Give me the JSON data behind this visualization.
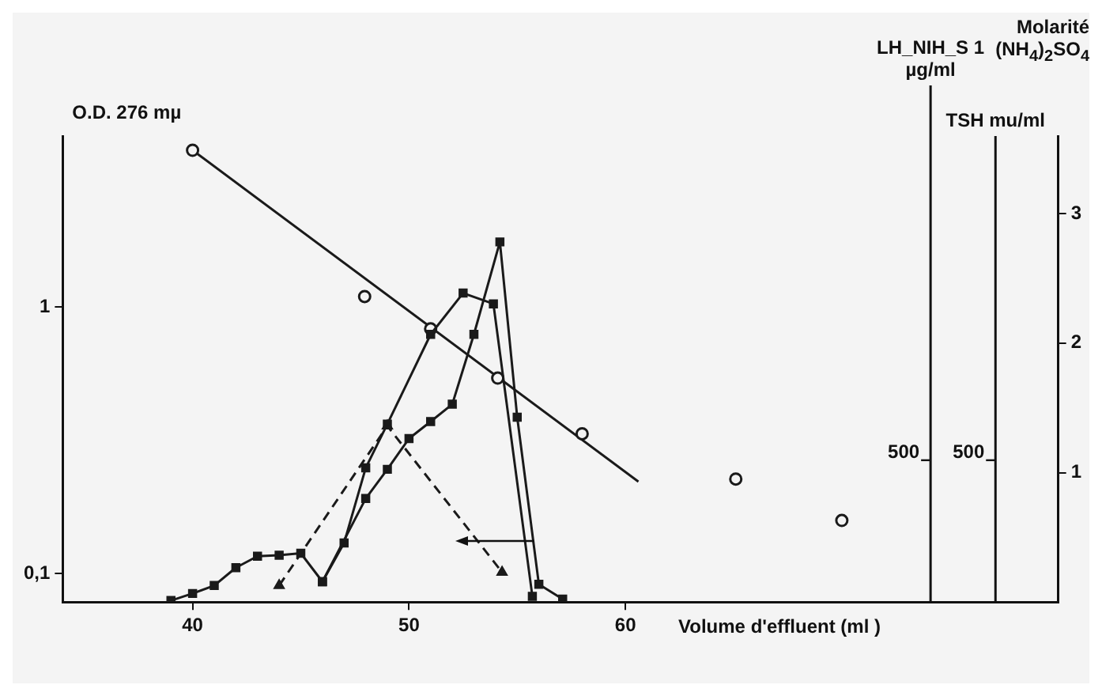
{
  "chart_data": {
    "type": "line",
    "ylabel": "O.D. 276 mµ",
    "xlabel": "Volume d'effluent (ml )",
    "y2label": "Molarité (NH$_{4}$)$_{2}$SO$_{4}$",
    "xlim": [
      34,
      80
    ],
    "xticks": [
      40,
      50,
      60
    ],
    "ylim": [
      0.078,
      4.4
    ],
    "yticks": [
      {
        "value": 0.1,
        "label": "0,1"
      },
      1
    ],
    "log": "y",
    "y2lim": [
      0,
      3.6
    ],
    "y2ticks": [
      1,
      2,
      3
    ],
    "ref_lines": [
      {
        "axis": "x",
        "value": 74.1,
        "label": "LH_NIH_S 1 µg/ml",
        "color": "#111111",
        "line_style": "solid"
      },
      {
        "axis": "x",
        "value": 77.1,
        "label": "TSH mu/ml",
        "color": "#111111",
        "line_style": "solid"
      }
    ],
    "annotations": [
      {
        "text": "500",
        "x": 74.1,
        "y": 0.285
      },
      {
        "text": "500",
        "x": 77.1,
        "y": 0.285
      }
    ],
    "grid": false,
    "legend": false,
    "series": [
      {
        "axis": "y",
        "color": "#1a1a1a",
        "marker": "square",
        "line_style": "solid",
        "x": [
          39,
          40,
          41,
          42,
          43,
          44,
          45,
          46,
          48,
          49,
          50,
          51,
          52,
          53,
          54.2,
          55,
          56,
          57.1
        ],
        "values": [
          0.079,
          0.084,
          0.09,
          0.105,
          0.116,
          0.117,
          0.119,
          0.093,
          0.191,
          0.246,
          0.321,
          0.372,
          0.432,
          0.791,
          1.76,
          0.386,
          0.091,
          0.08
        ]
      },
      {
        "axis": "y",
        "color": "#1a1a1a",
        "marker": "square",
        "line_style": "solid",
        "x": [
          46,
          47,
          48,
          49,
          51,
          52.5,
          53.9,
          55.7
        ],
        "values": [
          0.093,
          0.13,
          0.249,
          0.364,
          0.791,
          1.13,
          1.03,
          0.082
        ]
      },
      {
        "axis": "y",
        "color": "#1a1a1a",
        "marker": "triangle",
        "line_style": "dashed",
        "x": [
          44,
          49,
          54.3
        ],
        "values": [
          0.09,
          0.358,
          0.101
        ]
      },
      {
        "type": "scatter",
        "axis": "y2",
        "color": "#1a1a1a",
        "marker": "circle",
        "x": [
          40,
          47.95,
          51,
          54.1,
          58,
          65.1,
          70
        ],
        "values": [
          3.49,
          2.36,
          2.11,
          1.73,
          1.3,
          0.95,
          0.63
        ]
      },
      {
        "axis": "y2",
        "color": "#1a1a1a",
        "marker": "none",
        "line_style": "solid",
        "x": [
          40,
          60.6
        ],
        "values": [
          3.49,
          0.93
        ]
      }
    ]
  }
}
